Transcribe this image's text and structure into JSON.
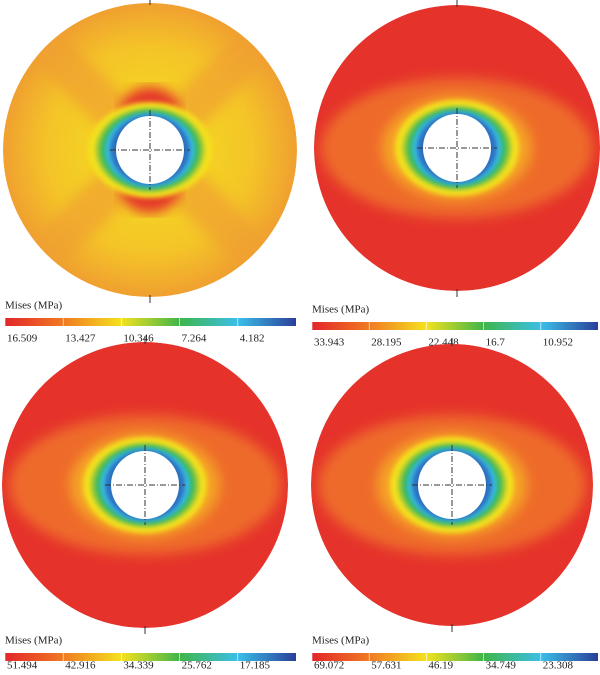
{
  "panels": [
    {
      "legend": {
        "title": "Mises (MPa)",
        "ticks": [
          16.509,
          13.427,
          10.346,
          7.264,
          4.182
        ]
      }
    },
    {
      "legend": {
        "title": "Mises (MPa)",
        "ticks": [
          33.943,
          28.195,
          22.448,
          16.7,
          10.952
        ]
      }
    },
    {
      "legend": {
        "title": "Mises (MPa)",
        "ticks": [
          51.494,
          42.916,
          34.339,
          25.762,
          17.185
        ]
      }
    },
    {
      "legend": {
        "title": "Mises (MPa)",
        "ticks": [
          69.072,
          57.631,
          46.19,
          34.749,
          23.308
        ]
      }
    }
  ]
}
